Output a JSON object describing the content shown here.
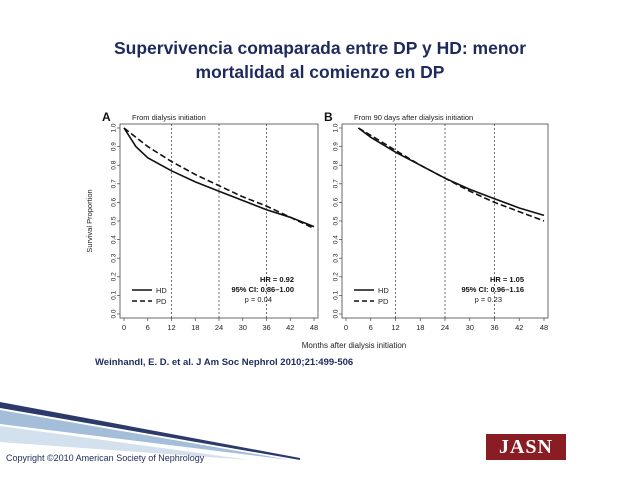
{
  "slide": {
    "title_line1": "Supervivencia comaparada entre DP y HD: menor",
    "title_line2": "mortalidad al comienzo en DP"
  },
  "citation": "Weinhandl, E. D. et al. J Am Soc Nephrol 2010;21:499-506",
  "copyright": "Copyright ©2010 American Society of Nephrology",
  "logo_text": "JASN",
  "colors": {
    "title": "#1f2a5c",
    "logo_bg": "#8a1c24",
    "curve": "#111111",
    "axis": "#444444"
  },
  "chart_data": [
    {
      "type": "line",
      "panel_label": "A",
      "title": "From dialysis initiation",
      "xlabel": "Months after dialysis initiation",
      "ylabel": "Survival Proportion",
      "xlim": [
        0,
        48
      ],
      "ylim": [
        0,
        1
      ],
      "x_ticks": [
        "0",
        "6",
        "12",
        "18",
        "24",
        "30",
        "36",
        "42",
        "48"
      ],
      "y_ticks": [
        "0.0",
        "0.1",
        "0.2",
        "0.3",
        "0.4",
        "0.5",
        "0.6",
        "0.7",
        "0.8",
        "0.9",
        "1.0"
      ],
      "vlines": [
        12,
        24,
        36
      ],
      "legend": {
        "placement": "bottom-left",
        "entries": [
          {
            "label": "HD",
            "style": "solid"
          },
          {
            "label": "PD",
            "style": "dashed"
          }
        ]
      },
      "stats": {
        "hr": "HR = 0.92",
        "ci": "95% CI: 0.86–1.00",
        "p": "p = 0.04"
      },
      "series": [
        {
          "name": "HD",
          "style": "solid",
          "x": [
            0,
            3,
            6,
            12,
            18,
            24,
            30,
            36,
            42,
            48
          ],
          "y": [
            1.0,
            0.9,
            0.84,
            0.77,
            0.71,
            0.66,
            0.61,
            0.56,
            0.52,
            0.47
          ]
        },
        {
          "name": "PD",
          "style": "dashed",
          "x": [
            0,
            3,
            6,
            12,
            18,
            24,
            30,
            36,
            42,
            48
          ],
          "y": [
            1.0,
            0.95,
            0.9,
            0.82,
            0.75,
            0.69,
            0.63,
            0.58,
            0.52,
            0.46
          ]
        }
      ]
    },
    {
      "type": "line",
      "panel_label": "B",
      "title": "From 90 days after dialysis initiation",
      "xlabel": "Months after dialysis initiation",
      "ylabel": "",
      "xlim": [
        0,
        48
      ],
      "ylim": [
        0,
        1
      ],
      "x_ticks": [
        "0",
        "6",
        "12",
        "18",
        "24",
        "30",
        "36",
        "42",
        "48"
      ],
      "y_ticks": [
        "0.0",
        "0.1",
        "0.2",
        "0.3",
        "0.4",
        "0.5",
        "0.6",
        "0.7",
        "0.8",
        "0.9",
        "1.0"
      ],
      "vlines": [
        12,
        24,
        36
      ],
      "legend": {
        "placement": "bottom-left",
        "entries": [
          {
            "label": "HD",
            "style": "solid"
          },
          {
            "label": "PD",
            "style": "dashed"
          }
        ]
      },
      "stats": {
        "hr": "HR = 1.05",
        "ci": "95% CI: 0.96–1.16",
        "p": "p = 0.23"
      },
      "series": [
        {
          "name": "HD",
          "style": "solid",
          "x": [
            3,
            6,
            12,
            18,
            24,
            30,
            36,
            42,
            48
          ],
          "y": [
            1.0,
            0.95,
            0.87,
            0.8,
            0.73,
            0.67,
            0.62,
            0.57,
            0.53
          ]
        },
        {
          "name": "PD",
          "style": "dashed",
          "x": [
            3,
            6,
            12,
            18,
            24,
            30,
            36,
            42,
            48
          ],
          "y": [
            1.0,
            0.96,
            0.88,
            0.8,
            0.73,
            0.66,
            0.6,
            0.55,
            0.5
          ]
        }
      ]
    }
  ]
}
